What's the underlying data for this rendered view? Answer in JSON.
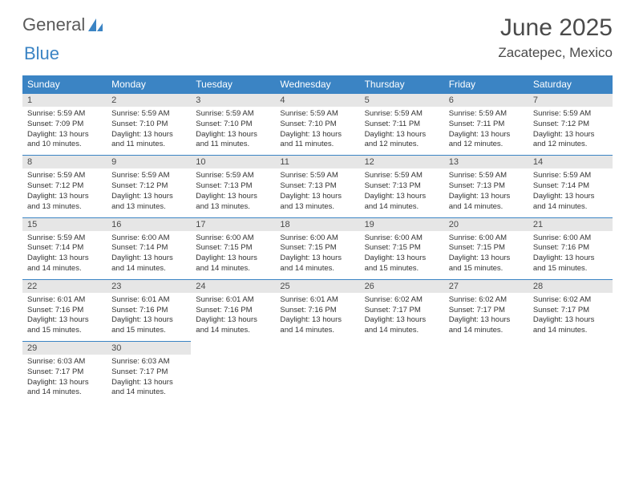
{
  "logo": {
    "text_gray": "General",
    "text_blue": "Blue",
    "icon_color": "#3b84c4",
    "text_gray_color": "#5a5a5a"
  },
  "title": "June 2025",
  "location": "Zacatepec, Mexico",
  "colors": {
    "header_bg": "#3b84c4",
    "header_text": "#ffffff",
    "daynum_bg": "#e6e6e6",
    "row_border": "#3b84c4",
    "body_text": "#333333",
    "title_text": "#4a4a4a"
  },
  "font": {
    "title_size_pt": 22,
    "location_size_pt": 13,
    "dayhdr_size_pt": 9,
    "daybody_size_pt": 7
  },
  "day_headers": [
    "Sunday",
    "Monday",
    "Tuesday",
    "Wednesday",
    "Thursday",
    "Friday",
    "Saturday"
  ],
  "weeks": [
    [
      {
        "n": "1",
        "sr": "5:59 AM",
        "ss": "7:09 PM",
        "dl": "13 hours and 10 minutes."
      },
      {
        "n": "2",
        "sr": "5:59 AM",
        "ss": "7:10 PM",
        "dl": "13 hours and 11 minutes."
      },
      {
        "n": "3",
        "sr": "5:59 AM",
        "ss": "7:10 PM",
        "dl": "13 hours and 11 minutes."
      },
      {
        "n": "4",
        "sr": "5:59 AM",
        "ss": "7:10 PM",
        "dl": "13 hours and 11 minutes."
      },
      {
        "n": "5",
        "sr": "5:59 AM",
        "ss": "7:11 PM",
        "dl": "13 hours and 12 minutes."
      },
      {
        "n": "6",
        "sr": "5:59 AM",
        "ss": "7:11 PM",
        "dl": "13 hours and 12 minutes."
      },
      {
        "n": "7",
        "sr": "5:59 AM",
        "ss": "7:12 PM",
        "dl": "13 hours and 12 minutes."
      }
    ],
    [
      {
        "n": "8",
        "sr": "5:59 AM",
        "ss": "7:12 PM",
        "dl": "13 hours and 13 minutes."
      },
      {
        "n": "9",
        "sr": "5:59 AM",
        "ss": "7:12 PM",
        "dl": "13 hours and 13 minutes."
      },
      {
        "n": "10",
        "sr": "5:59 AM",
        "ss": "7:13 PM",
        "dl": "13 hours and 13 minutes."
      },
      {
        "n": "11",
        "sr": "5:59 AM",
        "ss": "7:13 PM",
        "dl": "13 hours and 13 minutes."
      },
      {
        "n": "12",
        "sr": "5:59 AM",
        "ss": "7:13 PM",
        "dl": "13 hours and 14 minutes."
      },
      {
        "n": "13",
        "sr": "5:59 AM",
        "ss": "7:13 PM",
        "dl": "13 hours and 14 minutes."
      },
      {
        "n": "14",
        "sr": "5:59 AM",
        "ss": "7:14 PM",
        "dl": "13 hours and 14 minutes."
      }
    ],
    [
      {
        "n": "15",
        "sr": "5:59 AM",
        "ss": "7:14 PM",
        "dl": "13 hours and 14 minutes."
      },
      {
        "n": "16",
        "sr": "6:00 AM",
        "ss": "7:14 PM",
        "dl": "13 hours and 14 minutes."
      },
      {
        "n": "17",
        "sr": "6:00 AM",
        "ss": "7:15 PM",
        "dl": "13 hours and 14 minutes."
      },
      {
        "n": "18",
        "sr": "6:00 AM",
        "ss": "7:15 PM",
        "dl": "13 hours and 14 minutes."
      },
      {
        "n": "19",
        "sr": "6:00 AM",
        "ss": "7:15 PM",
        "dl": "13 hours and 15 minutes."
      },
      {
        "n": "20",
        "sr": "6:00 AM",
        "ss": "7:15 PM",
        "dl": "13 hours and 15 minutes."
      },
      {
        "n": "21",
        "sr": "6:00 AM",
        "ss": "7:16 PM",
        "dl": "13 hours and 15 minutes."
      }
    ],
    [
      {
        "n": "22",
        "sr": "6:01 AM",
        "ss": "7:16 PM",
        "dl": "13 hours and 15 minutes."
      },
      {
        "n": "23",
        "sr": "6:01 AM",
        "ss": "7:16 PM",
        "dl": "13 hours and 15 minutes."
      },
      {
        "n": "24",
        "sr": "6:01 AM",
        "ss": "7:16 PM",
        "dl": "13 hours and 14 minutes."
      },
      {
        "n": "25",
        "sr": "6:01 AM",
        "ss": "7:16 PM",
        "dl": "13 hours and 14 minutes."
      },
      {
        "n": "26",
        "sr": "6:02 AM",
        "ss": "7:17 PM",
        "dl": "13 hours and 14 minutes."
      },
      {
        "n": "27",
        "sr": "6:02 AM",
        "ss": "7:17 PM",
        "dl": "13 hours and 14 minutes."
      },
      {
        "n": "28",
        "sr": "6:02 AM",
        "ss": "7:17 PM",
        "dl": "13 hours and 14 minutes."
      }
    ],
    [
      {
        "n": "29",
        "sr": "6:03 AM",
        "ss": "7:17 PM",
        "dl": "13 hours and 14 minutes."
      },
      {
        "n": "30",
        "sr": "6:03 AM",
        "ss": "7:17 PM",
        "dl": "13 hours and 14 minutes."
      },
      null,
      null,
      null,
      null,
      null
    ]
  ],
  "labels": {
    "sunrise": "Sunrise: ",
    "sunset": "Sunset: ",
    "daylight": "Daylight: "
  }
}
